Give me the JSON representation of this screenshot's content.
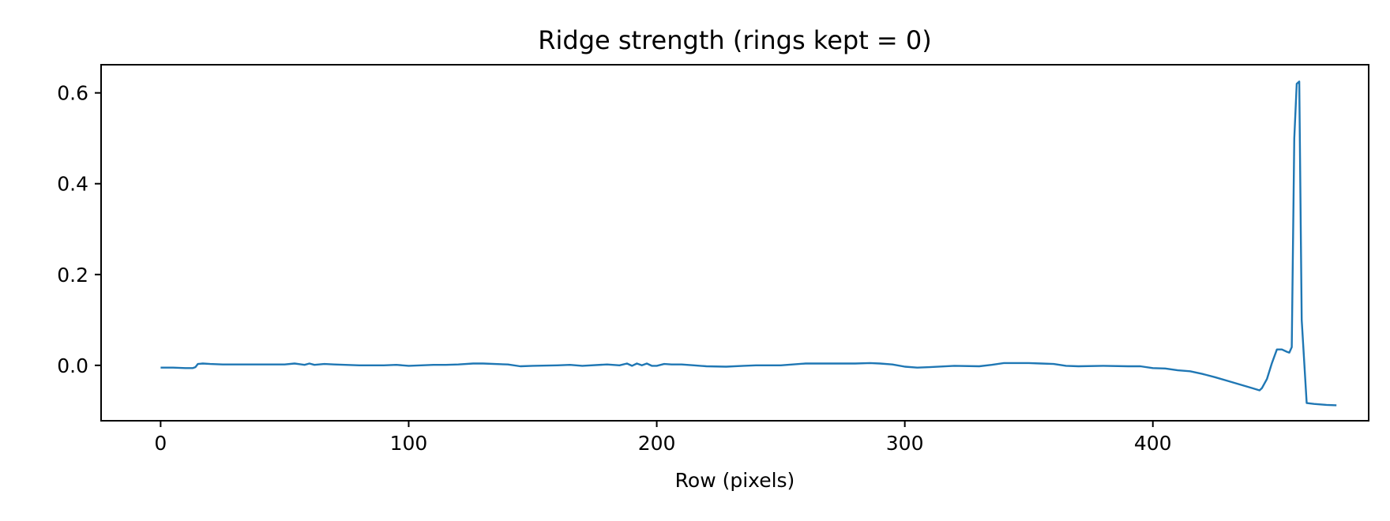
{
  "chart_data": {
    "type": "line",
    "title": "Ridge strength (rings kept = 0)",
    "xlabel": "Row (pixels)",
    "ylabel": "",
    "xlim": [
      -24,
      487
    ],
    "ylim": [
      -0.122,
      0.662
    ],
    "xticks": [
      0,
      100,
      200,
      300,
      400
    ],
    "yticks": [
      0.0,
      0.2,
      0.4,
      0.6
    ],
    "ytick_labels": [
      "0.0",
      "0.2",
      "0.4",
      "0.6"
    ],
    "grid": false,
    "line_color": "#1f77b4",
    "series": [
      {
        "x": [
          0,
          5,
          10,
          13,
          14,
          15,
          17,
          20,
          25,
          30,
          40,
          50,
          54,
          58,
          60,
          62,
          66,
          70,
          80,
          90,
          95,
          100,
          110,
          115,
          120,
          126,
          130,
          140,
          145,
          150,
          160,
          165,
          170,
          180,
          185,
          188,
          190,
          192,
          194,
          196,
          198,
          200,
          203,
          206,
          210,
          215,
          220,
          228,
          235,
          240,
          250,
          260,
          265,
          270,
          280,
          286,
          290,
          295,
          300,
          305,
          310,
          320,
          330,
          335,
          340,
          345,
          350,
          355,
          360,
          365,
          370,
          380,
          390,
          395,
          400,
          405,
          410,
          415,
          420,
          425,
          430,
          435,
          440,
          443,
          444,
          446,
          448,
          450,
          452,
          454,
          455,
          456,
          457,
          458,
          459,
          460,
          462,
          465,
          470,
          474
        ],
        "y": [
          -0.005,
          -0.005,
          -0.006,
          -0.006,
          -0.004,
          0.003,
          0.004,
          0.003,
          0.002,
          0.002,
          0.002,
          0.002,
          0.004,
          0.001,
          0.004,
          0.001,
          0.003,
          0.002,
          0.0,
          0.0,
          0.001,
          -0.001,
          0.001,
          0.001,
          0.002,
          0.004,
          0.004,
          0.002,
          -0.002,
          -0.001,
          0.0,
          0.001,
          -0.001,
          0.002,
          0.0,
          0.004,
          -0.001,
          0.004,
          0.0,
          0.004,
          -0.001,
          -0.001,
          0.003,
          0.002,
          0.002,
          0.0,
          -0.002,
          -0.003,
          -0.001,
          0.0,
          0.0,
          0.004,
          0.004,
          0.004,
          0.004,
          0.005,
          0.004,
          0.002,
          -0.003,
          -0.005,
          -0.004,
          -0.001,
          -0.002,
          0.001,
          0.005,
          0.005,
          0.005,
          0.004,
          0.003,
          -0.001,
          -0.002,
          -0.001,
          -0.002,
          -0.002,
          -0.006,
          -0.007,
          -0.011,
          -0.013,
          -0.019,
          -0.026,
          -0.034,
          -0.042,
          -0.05,
          -0.055,
          -0.05,
          -0.03,
          0.005,
          0.035,
          0.035,
          0.03,
          0.028,
          0.04,
          0.5,
          0.62,
          0.625,
          0.1,
          -0.083,
          -0.085,
          -0.087,
          -0.088
        ]
      }
    ]
  }
}
